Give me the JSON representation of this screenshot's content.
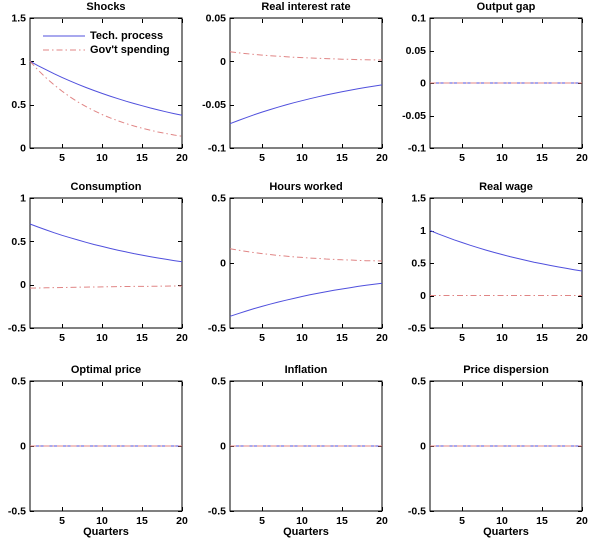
{
  "figure": {
    "background": "#ffffff",
    "axis_color": "#000000",
    "text_color": "#000000",
    "line_blue": "#5050DD",
    "line_red": "#E08585"
  },
  "chart_data": [
    {
      "type": "line",
      "title": "Shocks",
      "xlabel": "",
      "legend": true,
      "legend_position": "upper-left-inside",
      "x": [
        1,
        2,
        3,
        4,
        5,
        6,
        7,
        8,
        9,
        10,
        11,
        12,
        13,
        14,
        15,
        16,
        17,
        18,
        19,
        20
      ],
      "xticks": [
        5,
        10,
        15,
        20
      ],
      "xlim": [
        1,
        20
      ],
      "ylim": [
        0,
        1.5
      ],
      "yticks": [
        0,
        0.5,
        1,
        1.5
      ],
      "series": [
        {
          "name": "Tech. process",
          "style": "solid",
          "color": "#5050DD",
          "values": [
            1,
            0.95,
            0.903,
            0.857,
            0.815,
            0.774,
            0.735,
            0.698,
            0.663,
            0.63,
            0.599,
            0.569,
            0.54,
            0.513,
            0.488,
            0.463,
            0.44,
            0.418,
            0.397,
            0.377
          ]
        },
        {
          "name": "Gov't spending",
          "style": "dashdot",
          "color": "#E08585",
          "values": [
            1,
            0.9,
            0.81,
            0.729,
            0.656,
            0.59,
            0.531,
            0.478,
            0.43,
            0.387,
            0.349,
            0.314,
            0.282,
            0.254,
            0.229,
            0.206,
            0.185,
            0.167,
            0.15,
            0.135
          ]
        }
      ]
    },
    {
      "type": "line",
      "title": "Real interest rate",
      "xlabel": "",
      "legend": false,
      "x": [
        1,
        2,
        3,
        4,
        5,
        6,
        7,
        8,
        9,
        10,
        11,
        12,
        13,
        14,
        15,
        16,
        17,
        18,
        19,
        20
      ],
      "xticks": [
        5,
        10,
        15,
        20
      ],
      "xlim": [
        1,
        20
      ],
      "ylim": [
        -0.1,
        0.05
      ],
      "yticks": [
        -0.1,
        -0.05,
        0,
        0.05
      ],
      "series": [
        {
          "name": "Tech. process",
          "style": "solid",
          "color": "#5050DD",
          "values": [
            -0.072,
            -0.0684,
            -0.065,
            -0.0617,
            -0.0586,
            -0.0557,
            -0.0529,
            -0.0503,
            -0.0477,
            -0.0454,
            -0.0431,
            -0.0409,
            -0.0389,
            -0.037,
            -0.0351,
            -0.0334,
            -0.0317,
            -0.0301,
            -0.0286,
            -0.0272
          ]
        },
        {
          "name": "Gov't spending",
          "style": "dashdot",
          "color": "#E08585",
          "values": [
            0.011,
            0.0099,
            0.0089,
            0.008,
            0.0072,
            0.0065,
            0.0059,
            0.0053,
            0.0047,
            0.0043,
            0.0038,
            0.0035,
            0.0031,
            0.0028,
            0.0025,
            0.0023,
            0.002,
            0.0018,
            0.0017,
            0.0015
          ]
        }
      ]
    },
    {
      "type": "line",
      "title": "Output gap",
      "xlabel": "",
      "legend": false,
      "x": [
        1,
        2,
        3,
        4,
        5,
        6,
        7,
        8,
        9,
        10,
        11,
        12,
        13,
        14,
        15,
        16,
        17,
        18,
        19,
        20
      ],
      "xticks": [
        5,
        10,
        15,
        20
      ],
      "xlim": [
        1,
        20
      ],
      "ylim": [
        -0.1,
        0.1
      ],
      "yticks": [
        -0.1,
        -0.05,
        0,
        0.05,
        0.1
      ],
      "series": [
        {
          "name": "Tech. process",
          "style": "solid",
          "color": "#5050DD",
          "values": [
            0,
            0,
            0,
            0,
            0,
            0,
            0,
            0,
            0,
            0,
            0,
            0,
            0,
            0,
            0,
            0,
            0,
            0,
            0,
            0
          ]
        },
        {
          "name": "Gov't spending",
          "style": "dashdot",
          "color": "#E08585",
          "values": [
            0,
            0,
            0,
            0,
            0,
            0,
            0,
            0,
            0,
            0,
            0,
            0,
            0,
            0,
            0,
            0,
            0,
            0,
            0,
            0
          ]
        }
      ]
    },
    {
      "type": "line",
      "title": "Consumption",
      "xlabel": "",
      "legend": false,
      "x": [
        1,
        2,
        3,
        4,
        5,
        6,
        7,
        8,
        9,
        10,
        11,
        12,
        13,
        14,
        15,
        16,
        17,
        18,
        19,
        20
      ],
      "xticks": [
        5,
        10,
        15,
        20
      ],
      "xlim": [
        1,
        20
      ],
      "ylim": [
        -0.5,
        1
      ],
      "yticks": [
        -0.5,
        0,
        0.5,
        1
      ],
      "series": [
        {
          "name": "Tech. process",
          "style": "solid",
          "color": "#5050DD",
          "values": [
            0.7,
            0.665,
            0.632,
            0.6,
            0.57,
            0.542,
            0.515,
            0.489,
            0.464,
            0.441,
            0.419,
            0.398,
            0.378,
            0.359,
            0.341,
            0.324,
            0.308,
            0.293,
            0.278,
            0.264
          ]
        },
        {
          "name": "Gov't spending",
          "style": "dashdot",
          "color": "#E08585",
          "values": [
            -0.04,
            -0.038,
            -0.0361,
            -0.0343,
            -0.0326,
            -0.031,
            -0.0294,
            -0.0279,
            -0.0265,
            -0.0252,
            -0.024,
            -0.0228,
            -0.0216,
            -0.0205,
            -0.0195,
            -0.0185,
            -0.0176,
            -0.0167,
            -0.0159,
            -0.0151
          ]
        }
      ]
    },
    {
      "type": "line",
      "title": "Hours worked",
      "xlabel": "",
      "legend": false,
      "x": [
        1,
        2,
        3,
        4,
        5,
        6,
        7,
        8,
        9,
        10,
        11,
        12,
        13,
        14,
        15,
        16,
        17,
        18,
        19,
        20
      ],
      "xticks": [
        5,
        10,
        15,
        20
      ],
      "xlim": [
        1,
        20
      ],
      "ylim": [
        -0.5,
        0.5
      ],
      "yticks": [
        -0.5,
        0,
        0.5
      ],
      "series": [
        {
          "name": "Tech. process",
          "style": "solid",
          "color": "#5050DD",
          "values": [
            -0.41,
            -0.39,
            -0.37,
            -0.351,
            -0.334,
            -0.317,
            -0.301,
            -0.286,
            -0.272,
            -0.258,
            -0.245,
            -0.233,
            -0.221,
            -0.21,
            -0.2,
            -0.19,
            -0.18,
            -0.171,
            -0.163,
            -0.155
          ]
        },
        {
          "name": "Gov't spending",
          "style": "dashdot",
          "color": "#E08585",
          "values": [
            0.11,
            0.099,
            0.089,
            0.08,
            0.072,
            0.065,
            0.058,
            0.053,
            0.047,
            0.043,
            0.038,
            0.035,
            0.031,
            0.028,
            0.025,
            0.023,
            0.02,
            0.018,
            0.017,
            0.015
          ]
        }
      ]
    },
    {
      "type": "line",
      "title": "Real wage",
      "xlabel": "",
      "legend": false,
      "x": [
        1,
        2,
        3,
        4,
        5,
        6,
        7,
        8,
        9,
        10,
        11,
        12,
        13,
        14,
        15,
        16,
        17,
        18,
        19,
        20
      ],
      "xticks": [
        5,
        10,
        15,
        20
      ],
      "xlim": [
        1,
        20
      ],
      "ylim": [
        -0.5,
        1.5
      ],
      "yticks": [
        -0.5,
        0,
        0.5,
        1,
        1.5
      ],
      "series": [
        {
          "name": "Tech. process",
          "style": "solid",
          "color": "#5050DD",
          "values": [
            1,
            0.95,
            0.903,
            0.857,
            0.815,
            0.774,
            0.735,
            0.698,
            0.663,
            0.63,
            0.599,
            0.569,
            0.54,
            0.513,
            0.488,
            0.463,
            0.44,
            0.418,
            0.397,
            0.377
          ]
        },
        {
          "name": "Gov't spending",
          "style": "dashdot",
          "color": "#E08585",
          "values": [
            0,
            0,
            0,
            0,
            0,
            0,
            0,
            0,
            0,
            0,
            0,
            0,
            0,
            0,
            0,
            0,
            0,
            0,
            0,
            0
          ]
        }
      ]
    },
    {
      "type": "line",
      "title": "Optimal price",
      "xlabel": "Quarters",
      "legend": false,
      "x": [
        1,
        2,
        3,
        4,
        5,
        6,
        7,
        8,
        9,
        10,
        11,
        12,
        13,
        14,
        15,
        16,
        17,
        18,
        19,
        20
      ],
      "xticks": [
        5,
        10,
        15,
        20
      ],
      "xlim": [
        1,
        20
      ],
      "ylim": [
        -0.5,
        0.5
      ],
      "yticks": [
        -0.5,
        0,
        0.5
      ],
      "series": [
        {
          "name": "Tech. process",
          "style": "solid",
          "color": "#5050DD",
          "values": [
            0,
            0,
            0,
            0,
            0,
            0,
            0,
            0,
            0,
            0,
            0,
            0,
            0,
            0,
            0,
            0,
            0,
            0,
            0,
            0
          ]
        },
        {
          "name": "Gov't spending",
          "style": "dashdot",
          "color": "#E08585",
          "values": [
            0,
            0,
            0,
            0,
            0,
            0,
            0,
            0,
            0,
            0,
            0,
            0,
            0,
            0,
            0,
            0,
            0,
            0,
            0,
            0
          ]
        }
      ]
    },
    {
      "type": "line",
      "title": "Inflation",
      "xlabel": "Quarters",
      "legend": false,
      "x": [
        1,
        2,
        3,
        4,
        5,
        6,
        7,
        8,
        9,
        10,
        11,
        12,
        13,
        14,
        15,
        16,
        17,
        18,
        19,
        20
      ],
      "xticks": [
        5,
        10,
        15,
        20
      ],
      "xlim": [
        1,
        20
      ],
      "ylim": [
        -0.5,
        0.5
      ],
      "yticks": [
        -0.5,
        0,
        0.5
      ],
      "series": [
        {
          "name": "Tech. process",
          "style": "solid",
          "color": "#5050DD",
          "values": [
            0,
            0,
            0,
            0,
            0,
            0,
            0,
            0,
            0,
            0,
            0,
            0,
            0,
            0,
            0,
            0,
            0,
            0,
            0,
            0
          ]
        },
        {
          "name": "Gov't spending",
          "style": "dashdot",
          "color": "#E08585",
          "values": [
            0,
            0,
            0,
            0,
            0,
            0,
            0,
            0,
            0,
            0,
            0,
            0,
            0,
            0,
            0,
            0,
            0,
            0,
            0,
            0
          ]
        }
      ]
    },
    {
      "type": "line",
      "title": "Price dispersion",
      "xlabel": "Quarters",
      "legend": false,
      "x": [
        1,
        2,
        3,
        4,
        5,
        6,
        7,
        8,
        9,
        10,
        11,
        12,
        13,
        14,
        15,
        16,
        17,
        18,
        19,
        20
      ],
      "xticks": [
        5,
        10,
        15,
        20
      ],
      "xlim": [
        1,
        20
      ],
      "ylim": [
        -0.5,
        0.5
      ],
      "yticks": [
        -0.5,
        0,
        0.5
      ],
      "series": [
        {
          "name": "Tech. process",
          "style": "solid",
          "color": "#5050DD",
          "values": [
            0,
            0,
            0,
            0,
            0,
            0,
            0,
            0,
            0,
            0,
            0,
            0,
            0,
            0,
            0,
            0,
            0,
            0,
            0,
            0
          ]
        },
        {
          "name": "Gov't spending",
          "style": "dashdot",
          "color": "#E08585",
          "values": [
            0,
            0,
            0,
            0,
            0,
            0,
            0,
            0,
            0,
            0,
            0,
            0,
            0,
            0,
            0,
            0,
            0,
            0,
            0,
            0
          ]
        }
      ]
    }
  ]
}
